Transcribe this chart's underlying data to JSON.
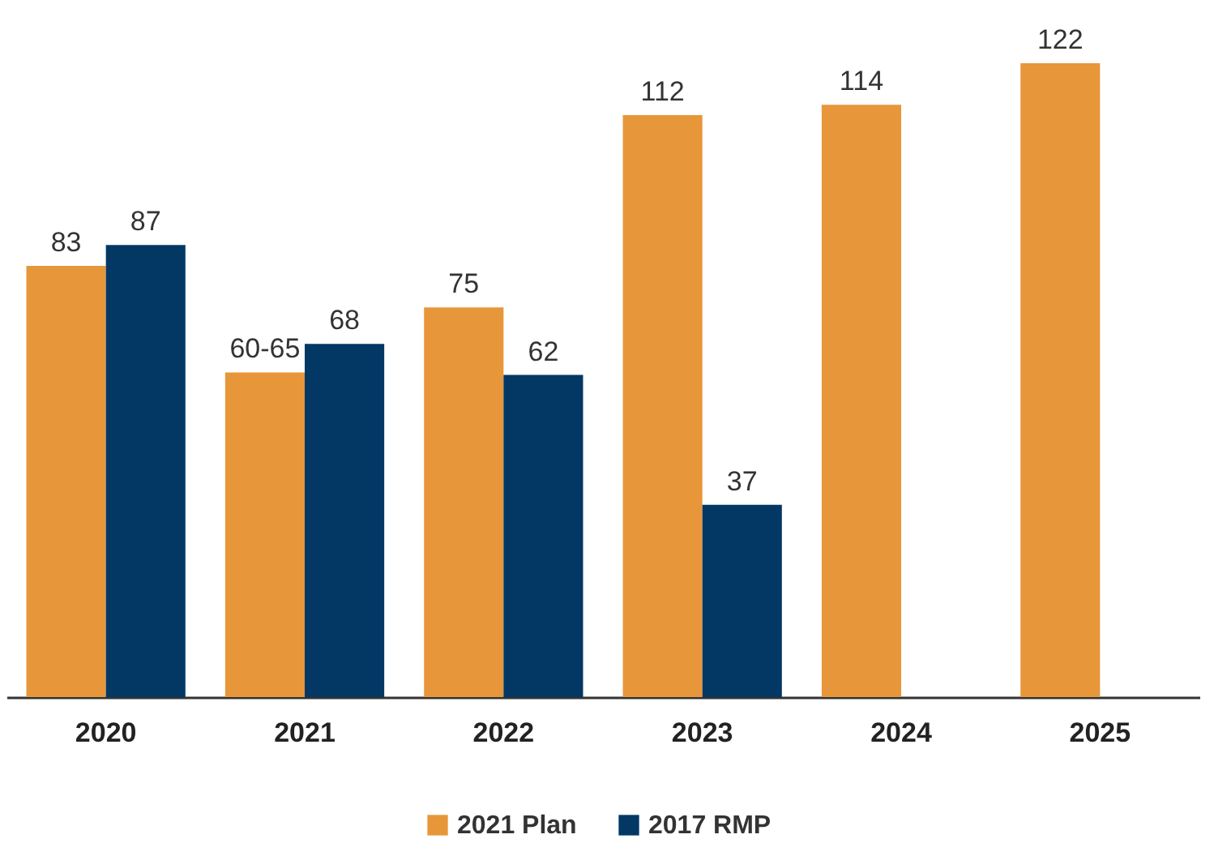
{
  "chart_data": {
    "type": "bar",
    "categories": [
      "2020",
      "2021",
      "2022",
      "2023",
      "2024",
      "2025"
    ],
    "series": [
      {
        "name": "2021 Plan",
        "color": "#e8963a",
        "values": [
          83,
          62.5,
          75,
          112,
          114,
          122
        ],
        "value_labels": [
          "83",
          "60-65",
          "75",
          "112",
          "114",
          "122"
        ]
      },
      {
        "name": "2017 RMP",
        "color": "#033865",
        "values": [
          87,
          68,
          62,
          37,
          null,
          null
        ],
        "value_labels": [
          "87",
          "68",
          "62",
          "37",
          null,
          null
        ]
      }
    ],
    "legend": "bottom"
  }
}
